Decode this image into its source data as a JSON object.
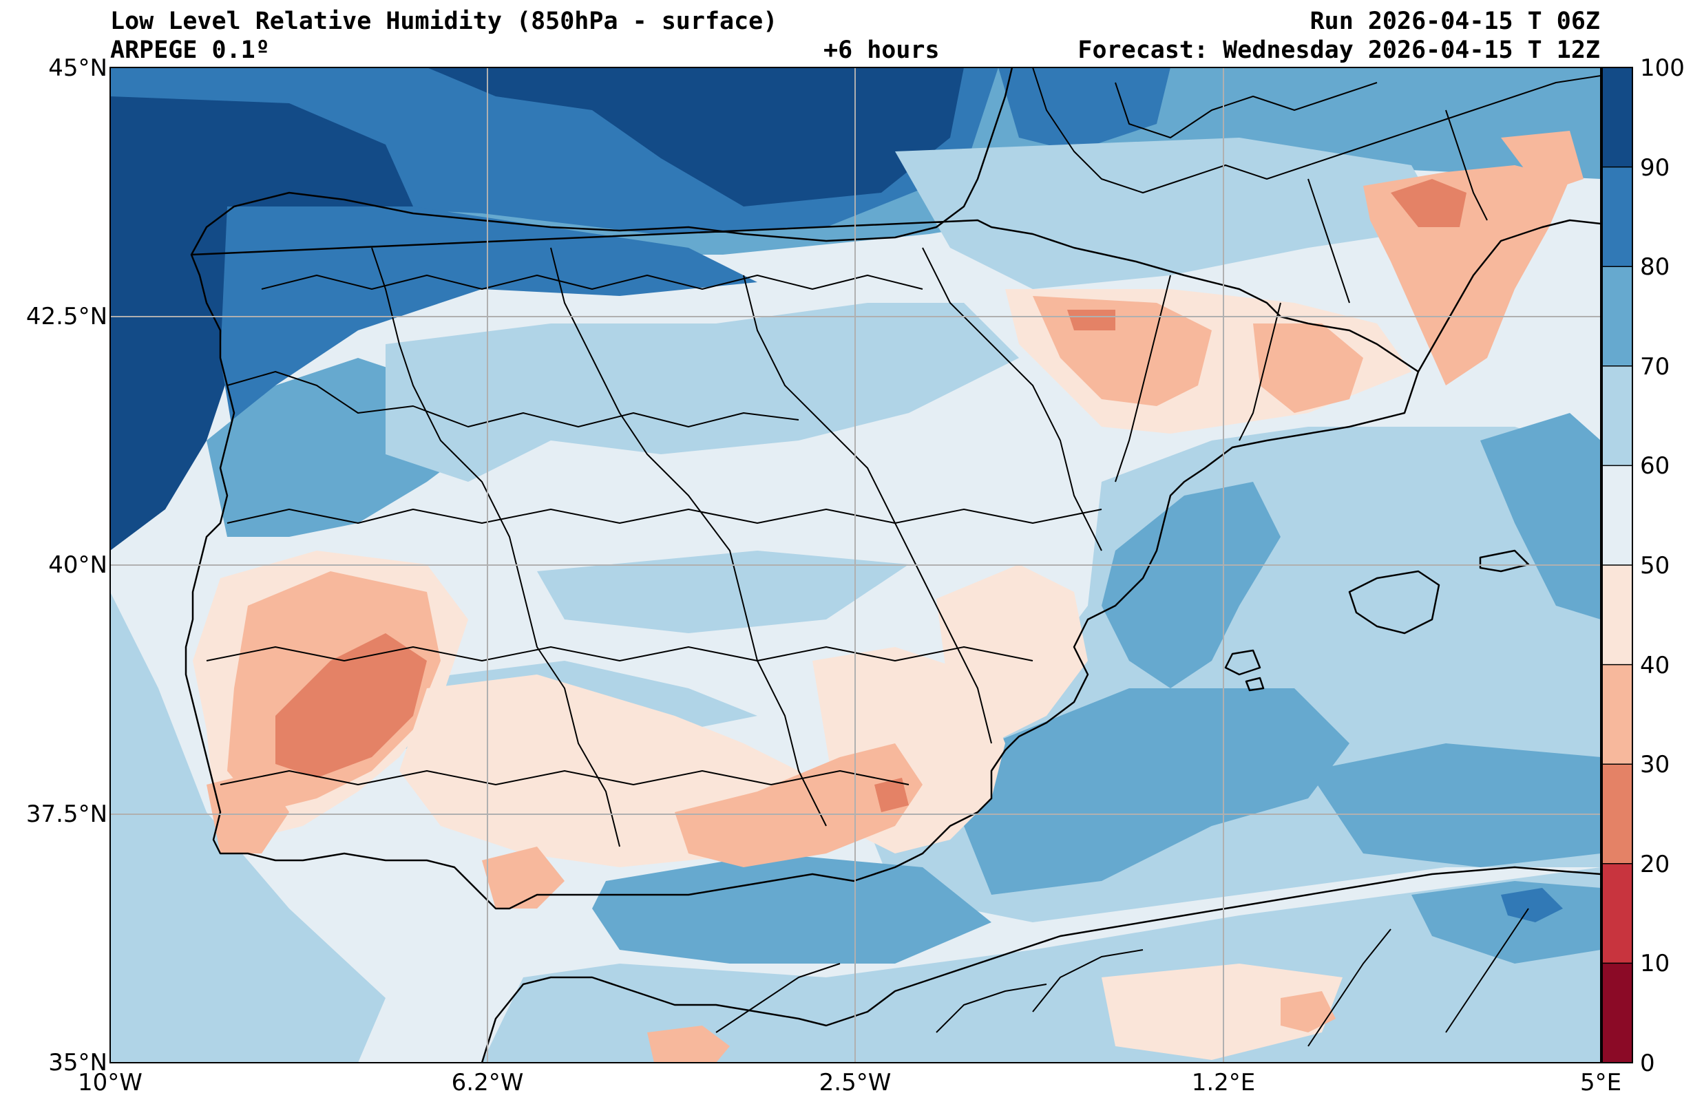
{
  "header": {
    "title": "Low Level Relative Humidity (850hPa - surface)",
    "model": "ARPEGE 0.1º",
    "lead_time": "+6 hours",
    "run": "Run 2026-04-15 T 06Z",
    "forecast": "Forecast: Wednesday 2026-04-15 T 12Z"
  },
  "map": {
    "region": "Iberian Peninsula",
    "variable": "Relative humidity (%)",
    "lon_range": [
      -10,
      5
    ],
    "lat_range": [
      35,
      45
    ],
    "lat_ticks": [
      {
        "value": 45,
        "label": "45°N"
      },
      {
        "value": 42.5,
        "label": "42.5°N"
      },
      {
        "value": 40,
        "label": "40°N"
      },
      {
        "value": 37.5,
        "label": "37.5°N"
      },
      {
        "value": 35,
        "label": "35°N"
      }
    ],
    "lon_ticks": [
      {
        "value": -10,
        "label": "10°W"
      },
      {
        "value": -6.2,
        "label": "6.2°W"
      },
      {
        "value": -2.5,
        "label": "2.5°W"
      },
      {
        "value": 1.2,
        "label": "1.2°E"
      },
      {
        "value": 5,
        "label": "5°E"
      }
    ],
    "humidity_areas": [
      {
        "name": "galicia-atlantic-very-humid",
        "band": 9
      },
      {
        "name": "bay-of-biscay-humid",
        "band": 8
      },
      {
        "name": "cantabrian-coast-humid",
        "band": 7
      },
      {
        "name": "mediterranean-sea-moist",
        "band": 6
      },
      {
        "name": "western-mediterranean-moist",
        "band": 6
      },
      {
        "name": "algerian-sea-moist",
        "band": 6
      },
      {
        "name": "alboran-sea-moist",
        "band": 6
      },
      {
        "name": "extremadura-dry",
        "band": 3
      },
      {
        "name": "extremadura-very-dry",
        "band": 2
      },
      {
        "name": "ebro-valley-dry",
        "band": 3
      },
      {
        "name": "catalonia-dry",
        "band": 3
      },
      {
        "name": "gulf-of-lion-dry",
        "band": 3
      },
      {
        "name": "granada-dry",
        "band": 3
      },
      {
        "name": "granada-very-dry",
        "band": 2
      },
      {
        "name": "murcia-dry",
        "band": 4
      },
      {
        "name": "andalusia-dry",
        "band": 4
      }
    ]
  },
  "colorbar": {
    "ticks": [
      "0",
      "10",
      "20",
      "30",
      "40",
      "50",
      "60",
      "70",
      "80",
      "90",
      "100"
    ],
    "bands": [
      {
        "from": 0,
        "to": 10,
        "color": "#8b0a26"
      },
      {
        "from": 10,
        "to": 20,
        "color": "#c8343e"
      },
      {
        "from": 20,
        "to": 30,
        "color": "#e48266"
      },
      {
        "from": 30,
        "to": 40,
        "color": "#f7b89c"
      },
      {
        "from": 40,
        "to": 50,
        "color": "#fae5d9"
      },
      {
        "from": 50,
        "to": 60,
        "color": "#e5eef4"
      },
      {
        "from": 60,
        "to": 70,
        "color": "#b0d4e7"
      },
      {
        "from": 70,
        "to": 80,
        "color": "#66a9cf"
      },
      {
        "from": 80,
        "to": 90,
        "color": "#3179b6"
      },
      {
        "from": 90,
        "to": 100,
        "color": "#134b87"
      }
    ]
  }
}
